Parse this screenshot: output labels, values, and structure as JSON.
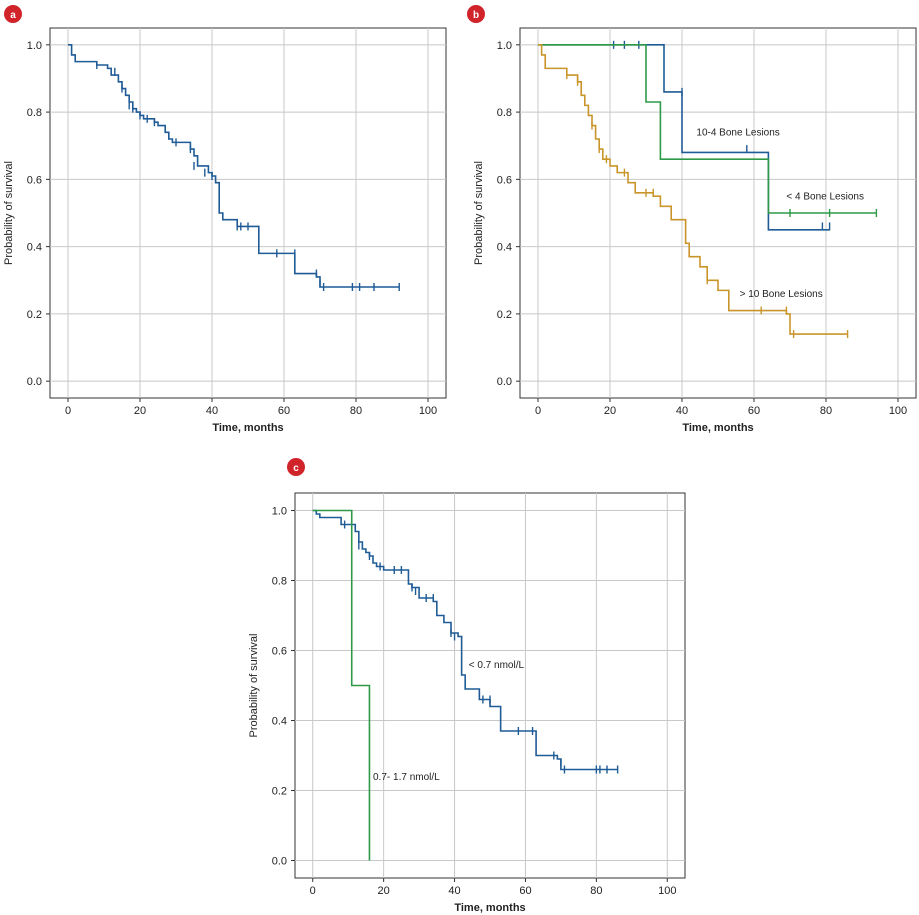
{
  "chart_data": [
    {
      "panel": "a",
      "type": "line",
      "xlabel": "Time, months",
      "ylabel": "Probability of survival",
      "xlim": [
        -5,
        105
      ],
      "ylim": [
        -0.05,
        1.05
      ],
      "xticks": [
        0,
        20,
        40,
        60,
        80,
        100
      ],
      "yticks": [
        0.0,
        0.2,
        0.4,
        0.6,
        0.8,
        1.0
      ],
      "grid": true,
      "series": [
        {
          "color": "#1f5b96",
          "steps": [
            [
              0,
              1.0
            ],
            [
              1,
              0.97
            ],
            [
              2,
              0.95
            ],
            [
              8,
              0.94
            ],
            [
              11,
              0.93
            ],
            [
              12,
              0.91
            ],
            [
              14,
              0.89
            ],
            [
              15,
              0.87
            ],
            [
              16,
              0.85
            ],
            [
              17,
              0.83
            ],
            [
              18,
              0.81
            ],
            [
              19,
              0.8
            ],
            [
              20,
              0.79
            ],
            [
              21,
              0.78
            ],
            [
              24,
              0.77
            ],
            [
              25,
              0.76
            ],
            [
              27,
              0.74
            ],
            [
              28,
              0.72
            ],
            [
              29,
              0.71
            ],
            [
              34,
              0.69
            ],
            [
              35,
              0.67
            ],
            [
              36,
              0.64
            ],
            [
              39,
              0.62
            ],
            [
              40,
              0.61
            ],
            [
              41,
              0.59
            ],
            [
              42,
              0.5
            ],
            [
              43,
              0.48
            ],
            [
              47,
              0.46
            ],
            [
              53,
              0.38
            ],
            [
              63,
              0.32
            ],
            [
              69,
              0.31
            ],
            [
              70,
              0.28
            ],
            [
              92,
              0.28
            ]
          ],
          "censored": [
            [
              8,
              0.94
            ],
            [
              13,
              0.92
            ],
            [
              15,
              0.87
            ],
            [
              17,
              0.82
            ],
            [
              18,
              0.81
            ],
            [
              20,
              0.79
            ],
            [
              22,
              0.78
            ],
            [
              24,
              0.77
            ],
            [
              28,
              0.73
            ],
            [
              30,
              0.71
            ],
            [
              34,
              0.69
            ],
            [
              35,
              0.64
            ],
            [
              38,
              0.62
            ],
            [
              40,
              0.61
            ],
            [
              47,
              0.46
            ],
            [
              48,
              0.46
            ],
            [
              50,
              0.46
            ],
            [
              58,
              0.38
            ],
            [
              63,
              0.38
            ],
            [
              69,
              0.32
            ],
            [
              70,
              0.29
            ],
            [
              71,
              0.28
            ],
            [
              79,
              0.28
            ],
            [
              81,
              0.28
            ],
            [
              85,
              0.28
            ],
            [
              92,
              0.28
            ]
          ]
        }
      ]
    },
    {
      "panel": "b",
      "type": "line",
      "xlabel": "Time, months",
      "ylabel": "Probability of survival",
      "xlim": [
        -5,
        105
      ],
      "ylim": [
        -0.05,
        1.05
      ],
      "xticks": [
        0,
        20,
        40,
        60,
        80,
        100
      ],
      "yticks": [
        0.0,
        0.2,
        0.4,
        0.6,
        0.8,
        1.0
      ],
      "grid": true,
      "series": [
        {
          "name": "10-4 Bone Lesions",
          "color": "#1f5b96",
          "label_at": [
            44,
            0.73
          ],
          "steps": [
            [
              0,
              1.0
            ],
            [
              35,
              1.0
            ],
            [
              35,
              0.86
            ],
            [
              40,
              0.86
            ],
            [
              40,
              0.68
            ],
            [
              64,
              0.68
            ],
            [
              64,
              0.45
            ],
            [
              81,
              0.45
            ]
          ],
          "censored": [
            [
              21,
              1.0
            ],
            [
              24,
              1.0
            ],
            [
              28,
              1.0
            ],
            [
              40,
              0.86
            ],
            [
              58,
              0.69
            ],
            [
              79,
              0.46
            ],
            [
              81,
              0.46
            ]
          ]
        },
        {
          "name": "< 4 Bone Lesions",
          "color": "#2e9a48",
          "label_at": [
            69,
            0.54
          ],
          "steps": [
            [
              0,
              1.0
            ],
            [
              30,
              1.0
            ],
            [
              30,
              0.83
            ],
            [
              34,
              0.83
            ],
            [
              34,
              0.66
            ],
            [
              64,
              0.66
            ],
            [
              64,
              0.5
            ],
            [
              94,
              0.5
            ]
          ],
          "censored": [
            [
              70,
              0.5
            ],
            [
              81,
              0.5
            ],
            [
              94,
              0.5
            ]
          ]
        },
        {
          "name": "> 10 Bone Lesions",
          "color": "#c9952a",
          "label_at": [
            56,
            0.25
          ],
          "steps": [
            [
              0,
              1.0
            ],
            [
              1,
              0.97
            ],
            [
              2,
              0.93
            ],
            [
              8,
              0.91
            ],
            [
              11,
              0.89
            ],
            [
              12,
              0.85
            ],
            [
              13,
              0.82
            ],
            [
              14,
              0.79
            ],
            [
              15,
              0.76
            ],
            [
              16,
              0.72
            ],
            [
              17,
              0.69
            ],
            [
              18,
              0.66
            ],
            [
              20,
              0.64
            ],
            [
              22,
              0.62
            ],
            [
              25,
              0.59
            ],
            [
              27,
              0.56
            ],
            [
              32,
              0.55
            ],
            [
              34,
              0.52
            ],
            [
              37,
              0.48
            ],
            [
              41,
              0.41
            ],
            [
              42,
              0.37
            ],
            [
              45,
              0.34
            ],
            [
              47,
              0.3
            ],
            [
              50,
              0.27
            ],
            [
              53,
              0.21
            ],
            [
              69,
              0.2
            ],
            [
              70,
              0.14
            ],
            [
              86,
              0.14
            ]
          ],
          "censored": [
            [
              8,
              0.91
            ],
            [
              11,
              0.89
            ],
            [
              15,
              0.76
            ],
            [
              17,
              0.69
            ],
            [
              19,
              0.66
            ],
            [
              24,
              0.62
            ],
            [
              30,
              0.56
            ],
            [
              32,
              0.56
            ],
            [
              47,
              0.3
            ],
            [
              62,
              0.21
            ],
            [
              69,
              0.21
            ],
            [
              71,
              0.14
            ],
            [
              86,
              0.14
            ]
          ]
        }
      ]
    },
    {
      "panel": "c",
      "type": "line",
      "xlabel": "Time, months",
      "ylabel": "Probability of survival",
      "xlim": [
        -5,
        105
      ],
      "ylim": [
        -0.05,
        1.05
      ],
      "xticks": [
        0,
        20,
        40,
        60,
        80,
        100
      ],
      "yticks": [
        0.0,
        0.2,
        0.4,
        0.6,
        0.8,
        1.0
      ],
      "grid": true,
      "series": [
        {
          "name": "< 0.7 nmol/L",
          "color": "#1f5b96",
          "label_at": [
            44,
            0.55
          ],
          "steps": [
            [
              0,
              1.0
            ],
            [
              1,
              0.99
            ],
            [
              2,
              0.98
            ],
            [
              8,
              0.96
            ],
            [
              12,
              0.94
            ],
            [
              13,
              0.91
            ],
            [
              14,
              0.89
            ],
            [
              15,
              0.88
            ],
            [
              16,
              0.87
            ],
            [
              17,
              0.85
            ],
            [
              18,
              0.84
            ],
            [
              20,
              0.83
            ],
            [
              27,
              0.79
            ],
            [
              28,
              0.78
            ],
            [
              30,
              0.75
            ],
            [
              34,
              0.74
            ],
            [
              35,
              0.7
            ],
            [
              37,
              0.68
            ],
            [
              39,
              0.65
            ],
            [
              41,
              0.64
            ],
            [
              42,
              0.53
            ],
            [
              43,
              0.49
            ],
            [
              47,
              0.46
            ],
            [
              50,
              0.44
            ],
            [
              53,
              0.37
            ],
            [
              63,
              0.3
            ],
            [
              69,
              0.29
            ],
            [
              70,
              0.26
            ],
            [
              86,
              0.26
            ]
          ],
          "censored": [
            [
              9,
              0.96
            ],
            [
              13,
              0.9
            ],
            [
              16,
              0.87
            ],
            [
              19,
              0.84
            ],
            [
              23,
              0.83
            ],
            [
              25,
              0.83
            ],
            [
              28,
              0.78
            ],
            [
              29,
              0.77
            ],
            [
              32,
              0.75
            ],
            [
              34,
              0.75
            ],
            [
              39,
              0.65
            ],
            [
              40,
              0.64
            ],
            [
              48,
              0.46
            ],
            [
              50,
              0.46
            ],
            [
              58,
              0.37
            ],
            [
              62,
              0.37
            ],
            [
              68,
              0.3
            ],
            [
              70,
              0.28
            ],
            [
              71,
              0.26
            ],
            [
              80,
              0.26
            ],
            [
              81,
              0.26
            ],
            [
              83,
              0.26
            ],
            [
              86,
              0.26
            ]
          ]
        },
        {
          "name": "0.7- 1.7 nmol/L",
          "color": "#2e9a48",
          "label_at": [
            17,
            0.23
          ],
          "steps": [
            [
              0,
              1.0
            ],
            [
              11,
              1.0
            ],
            [
              11,
              0.5
            ],
            [
              16,
              0.5
            ],
            [
              16,
              0.0
            ]
          ],
          "censored": []
        }
      ]
    }
  ],
  "panels": [
    {
      "badge": "a"
    },
    {
      "badge": "b"
    },
    {
      "badge": "c"
    }
  ],
  "colors": {
    "badge": "#d0232a",
    "grid": "#c8c8c8",
    "axis": "#333333"
  }
}
